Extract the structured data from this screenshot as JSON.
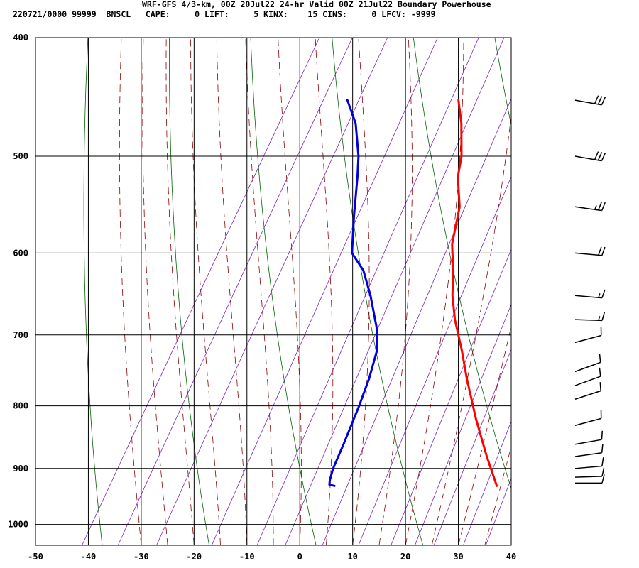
{
  "header": {
    "title": "WRF-GFS 4/3-km, 00Z 20Jul22 24-hr Valid 00Z 21Jul22 Boundary Powerhouse",
    "subtitle": "220721/0000 99999  BNSCL   CAPE:     0 LIFT:     5 KINX:    15 CINS:     0 LFCV: -9999"
  },
  "colors": {
    "temperature": "#ff0000",
    "dewpoint": "#0000dd",
    "dry_adiabat": "#006400",
    "moist_adiabat": "#8b0000",
    "mixing_ratio": "#7b24b8",
    "grid": "#000000"
  },
  "chart_data": {
    "type": "line",
    "subtype": "skew-t log-p sounding",
    "xlim": [
      -50,
      40
    ],
    "ylim": [
      1040,
      400
    ],
    "y_scale": "log",
    "x_ticks": [
      "-50",
      "-40",
      "-30",
      "-20",
      "-10",
      "0",
      "10",
      "20",
      "30",
      "40"
    ],
    "y_ticks": [
      "400",
      "500",
      "600",
      "700",
      "800",
      "900",
      "1000"
    ],
    "grid": true,
    "series": [
      {
        "color": "#ff0000",
        "points": [
          {
            "p": 930,
            "t": 31
          },
          {
            "p": 880,
            "t": 26
          },
          {
            "p": 820,
            "t": 20
          },
          {
            "p": 760,
            "t": 14
          },
          {
            "p": 720,
            "t": 10
          },
          {
            "p": 680,
            "t": 5.5
          },
          {
            "p": 650,
            "t": 2.5
          },
          {
            "p": 620,
            "t": 0
          },
          {
            "p": 590,
            "t": -3
          },
          {
            "p": 550,
            "t": -5.5
          },
          {
            "p": 520,
            "t": -9
          },
          {
            "p": 500,
            "t": -10.5
          },
          {
            "p": 470,
            "t": -14
          },
          {
            "p": 450,
            "t": -17
          }
        ]
      },
      {
        "color": "#0000dd",
        "points": [
          {
            "p": 930,
            "t": 0.3
          },
          {
            "p": 928,
            "t": -0.8
          },
          {
            "p": 920,
            "t": -1.2
          },
          {
            "p": 900,
            "t": -1.8
          },
          {
            "p": 860,
            "t": -2.4
          },
          {
            "p": 800,
            "t": -3.5
          },
          {
            "p": 760,
            "t": -4.5
          },
          {
            "p": 720,
            "t": -6
          },
          {
            "p": 690,
            "t": -8.5
          },
          {
            "p": 650,
            "t": -13
          },
          {
            "p": 620,
            "t": -17
          },
          {
            "p": 600,
            "t": -21
          },
          {
            "p": 560,
            "t": -24.5
          },
          {
            "p": 520,
            "t": -28
          },
          {
            "p": 500,
            "t": -30
          },
          {
            "p": 470,
            "t": -34
          },
          {
            "p": 450,
            "t": -38
          }
        ]
      }
    ],
    "wind_barbs": [
      {
        "p": 450,
        "speed": 30,
        "dir": 260
      },
      {
        "p": 500,
        "speed": 30,
        "dir": 260
      },
      {
        "p": 550,
        "speed": 25,
        "dir": 262
      },
      {
        "p": 600,
        "speed": 20,
        "dir": 265
      },
      {
        "p": 650,
        "speed": 15,
        "dir": 265
      },
      {
        "p": 680,
        "speed": 15,
        "dir": 268
      },
      {
        "p": 710,
        "speed": 10,
        "dir": 285
      },
      {
        "p": 750,
        "speed": 10,
        "dir": 290
      },
      {
        "p": 770,
        "speed": 10,
        "dir": 290
      },
      {
        "p": 790,
        "speed": 10,
        "dir": 288
      },
      {
        "p": 830,
        "speed": 10,
        "dir": 285
      },
      {
        "p": 860,
        "speed": 10,
        "dir": 280
      },
      {
        "p": 880,
        "speed": 10,
        "dir": 278
      },
      {
        "p": 900,
        "speed": 10,
        "dir": 275
      },
      {
        "p": 915,
        "speed": 10,
        "dir": 272
      },
      {
        "p": 925,
        "speed": 10,
        "dir": 270
      }
    ]
  }
}
